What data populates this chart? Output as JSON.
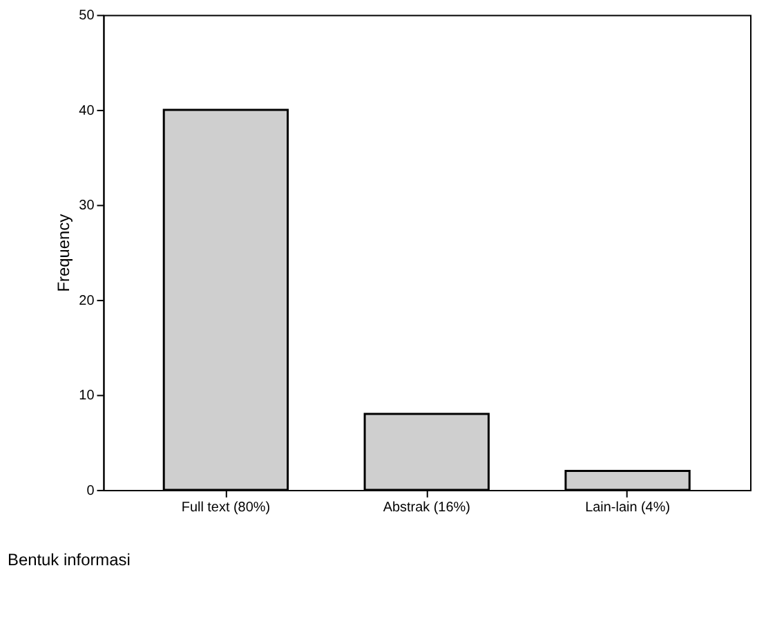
{
  "chart_data": {
    "type": "bar",
    "categories": [
      "Full text (80%)",
      "Abstrak (16%)",
      "Lain-lain (4%)"
    ],
    "values": [
      40,
      8,
      2
    ],
    "color": "#cfcfcf",
    "xlabel": "Bentuk informasi",
    "ylabel": "Frequency",
    "ylim": [
      0,
      50
    ],
    "yticks": [
      0,
      10,
      20,
      30,
      40,
      50
    ],
    "grid": false,
    "legend": false
  }
}
